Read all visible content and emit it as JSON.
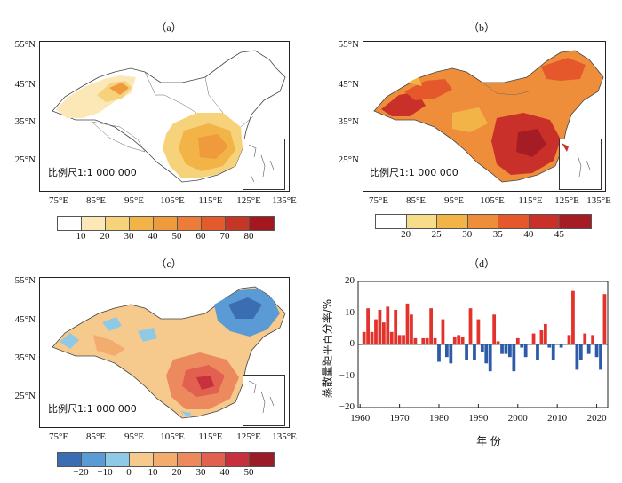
{
  "panels": {
    "a": {
      "label": "（a）",
      "lat": [
        "55°N",
        "45°N",
        "35°N",
        "25°N"
      ],
      "lon": [
        "75°E",
        "85°E",
        "95°E",
        "105°E",
        "115°E",
        "125°E",
        "135°E"
      ],
      "scale": "比例尺1:1 000 000",
      "colorbar": {
        "labels": [
          "10",
          "20",
          "30",
          "40",
          "50",
          "60",
          "70",
          "80"
        ],
        "colors": [
          "#ffffff",
          "#fbe8b6",
          "#f6d27a",
          "#f2b347",
          "#ef9a3c",
          "#ec7c37",
          "#e55a2c",
          "#c63626",
          "#a3171f"
        ]
      }
    },
    "b": {
      "label": "（b）",
      "lat": [
        "55°N",
        "45°N",
        "35°N",
        "25°N"
      ],
      "lon": [
        "75°E",
        "85°E",
        "95°E",
        "105°E",
        "115°E",
        "125°E",
        "135°E"
      ],
      "scale": "比例尺1:1 000 000",
      "colorbar": {
        "labels": [
          "20",
          "25",
          "30",
          "35",
          "40",
          "45"
        ],
        "colors": [
          "#ffffff",
          "#f7dd8a",
          "#f2b347",
          "#ee8e3a",
          "#e5582c",
          "#c9302a",
          "#a61c24"
        ]
      }
    },
    "c": {
      "label": "（c）",
      "lat": [
        "55°N",
        "45°N",
        "35°N",
        "25°N"
      ],
      "lon": [
        "75°E",
        "85°E",
        "95°E",
        "105°E",
        "115°E",
        "125°E",
        "135°E"
      ],
      "scale": "比例尺1:1 000 000",
      "colorbar": {
        "labels": [
          "−20",
          "−10",
          "0",
          "10",
          "20",
          "30",
          "40",
          "50"
        ],
        "colors": [
          "#3b6db3",
          "#5b9bd5",
          "#8ecae6",
          "#f6c98c",
          "#f2ad6e",
          "#ec8a5e",
          "#e2604f",
          "#c9303d",
          "#991c26"
        ]
      }
    },
    "d": {
      "label": "（d）",
      "ylabel": "蒸散量距平百分率/%",
      "xlabel": "年  份"
    }
  },
  "chart_data": {
    "type": "bar",
    "x": [
      1961,
      1962,
      1963,
      1964,
      1965,
      1966,
      1967,
      1968,
      1969,
      1970,
      1971,
      1972,
      1973,
      1974,
      1975,
      1976,
      1977,
      1978,
      1979,
      1980,
      1981,
      1982,
      1983,
      1984,
      1985,
      1986,
      1987,
      1988,
      1989,
      1990,
      1991,
      1992,
      1993,
      1994,
      1995,
      1996,
      1997,
      1998,
      1999,
      2000,
      2001,
      2002,
      2003,
      2004,
      2005,
      2006,
      2007,
      2008,
      2009,
      2010,
      2011,
      2012,
      2013,
      2014,
      2015,
      2016,
      2017,
      2018,
      2019,
      2020,
      2021,
      2022
    ],
    "values": [
      4,
      11.5,
      4,
      8,
      11,
      7,
      12,
      4,
      11,
      3,
      3,
      13,
      9.5,
      2,
      0,
      2,
      2,
      11.5,
      2,
      -5.5,
      8,
      -4,
      -6,
      2.5,
      3,
      2.5,
      -5,
      11.5,
      -5,
      8,
      -2.5,
      -6,
      -8.5,
      9.5,
      1,
      -3,
      -3,
      -4,
      -8.5,
      2,
      -1,
      -4,
      0,
      3.5,
      -5,
      4.5,
      6.5,
      -1,
      -5,
      0,
      -1,
      0,
      3,
      17,
      -8,
      -5,
      3.5,
      -3,
      3,
      -4,
      -8,
      16
    ],
    "xlabel": "年  份",
    "ylabel": "蒸散量距平百分率/%",
    "ylim": [
      -20,
      20
    ],
    "xticks": [
      "1960",
      "1970",
      "1980",
      "1990",
      "2000",
      "2010",
      "2020"
    ],
    "yticks": [
      "20",
      "10",
      "0",
      "−10",
      "−20"
    ],
    "colors": {
      "positive": "#e3322b",
      "negative": "#2d5ba8"
    }
  }
}
